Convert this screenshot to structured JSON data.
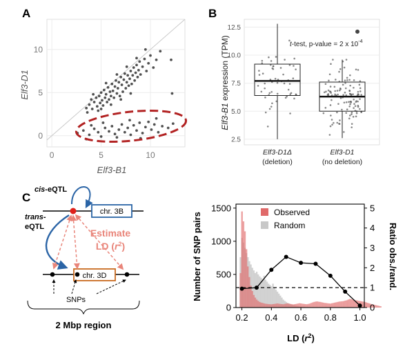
{
  "panel_labels": {
    "a": "A",
    "b": "B",
    "c": "C"
  },
  "colors": {
    "dark_red": "#b22222",
    "observed": "#e06a6a",
    "random": "#c8c8c8",
    "blue": "#2a64a6",
    "orange": "#c96a1e",
    "salmon": "#e9857a"
  },
  "chart_data": [
    {
      "type": "scatter",
      "panel": "A",
      "xlabel": "Elf3-B1",
      "ylabel": "Elf3-D1",
      "xlim": [
        -0.5,
        13.5
      ],
      "ylim": [
        -1.3,
        13.5
      ],
      "xticks": [
        "0",
        "5",
        "10"
      ],
      "yticks": [
        "0",
        "5",
        "10"
      ],
      "xtick_values": [
        0,
        5,
        10
      ],
      "ytick_values": [
        0,
        5,
        10
      ],
      "diagonal": "y = x",
      "highlight": "Elf3-D1 ≈ 0 cluster (dashed ellipse)",
      "points_upper": [
        [
          3.5,
          3.2
        ],
        [
          3.8,
          3.6
        ],
        [
          4.0,
          4.2
        ],
        [
          4.1,
          3.1
        ],
        [
          4.3,
          3.9
        ],
        [
          4.5,
          4.4
        ],
        [
          4.6,
          3.4
        ],
        [
          4.8,
          4.6
        ],
        [
          4.9,
          3.8
        ],
        [
          5.0,
          5.0
        ],
        [
          5.1,
          4.1
        ],
        [
          5.2,
          3.5
        ],
        [
          5.3,
          5.3
        ],
        [
          5.4,
          4.4
        ],
        [
          5.5,
          4.8
        ],
        [
          5.6,
          3.9
        ],
        [
          5.7,
          5.6
        ],
        [
          5.8,
          4.2
        ],
        [
          5.9,
          5.1
        ],
        [
          6.0,
          4.6
        ],
        [
          6.1,
          6.0
        ],
        [
          6.2,
          5.2
        ],
        [
          6.3,
          4.4
        ],
        [
          6.4,
          5.7
        ],
        [
          6.5,
          6.4
        ],
        [
          6.6,
          4.9
        ],
        [
          6.7,
          5.5
        ],
        [
          6.8,
          6.2
        ],
        [
          6.9,
          4.6
        ],
        [
          7.0,
          6.8
        ],
        [
          7.1,
          5.9
        ],
        [
          7.2,
          5.1
        ],
        [
          7.3,
          6.5
        ],
        [
          7.4,
          7.2
        ],
        [
          7.5,
          5.5
        ],
        [
          7.6,
          6.2
        ],
        [
          7.7,
          7.0
        ],
        [
          7.8,
          5.8
        ],
        [
          7.9,
          6.6
        ],
        [
          8.0,
          7.5
        ],
        [
          8.1,
          6.0
        ],
        [
          8.2,
          7.0
        ],
        [
          8.3,
          7.9
        ],
        [
          8.4,
          6.4
        ],
        [
          8.5,
          7.3
        ],
        [
          8.6,
          8.2
        ],
        [
          8.7,
          6.8
        ],
        [
          8.8,
          7.6
        ],
        [
          8.9,
          8.6
        ],
        [
          9.0,
          7.1
        ],
        [
          9.2,
          8.0
        ],
        [
          9.4,
          8.9
        ],
        [
          9.6,
          7.5
        ],
        [
          9.8,
          8.4
        ],
        [
          10.0,
          9.3
        ],
        [
          10.3,
          7.9
        ],
        [
          10.6,
          8.8
        ],
        [
          11.0,
          9.8
        ],
        [
          5.0,
          3.1
        ],
        [
          6.0,
          3.6
        ],
        [
          7.0,
          4.2
        ],
        [
          8.0,
          4.9
        ],
        [
          4.2,
          4.8
        ],
        [
          5.5,
          6.1
        ],
        [
          6.6,
          7.1
        ],
        [
          7.6,
          8.0
        ],
        [
          8.6,
          9.0
        ],
        [
          9.5,
          10.0
        ],
        [
          12.1,
          8.8
        ],
        [
          12.2,
          4.9
        ],
        [
          3.6,
          2.7
        ],
        [
          4.7,
          2.9
        ]
      ],
      "points_lower": [
        [
          2.6,
          0.3
        ],
        [
          3.2,
          0.6
        ],
        [
          3.8,
          0.1
        ],
        [
          4.3,
          0.8
        ],
        [
          4.7,
          0.4
        ],
        [
          5.0,
          -0.1
        ],
        [
          5.4,
          0.9
        ],
        [
          5.8,
          0.5
        ],
        [
          6.1,
          1.1
        ],
        [
          6.4,
          0.2
        ],
        [
          6.8,
          0.7
        ],
        [
          7.1,
          1.3
        ],
        [
          7.4,
          0.4
        ],
        [
          7.7,
          0.9
        ],
        [
          8.0,
          0.1
        ],
        [
          8.3,
          1.2
        ],
        [
          8.6,
          0.6
        ],
        [
          8.9,
          1.5
        ],
        [
          9.2,
          0.3
        ],
        [
          9.5,
          1.0
        ],
        [
          9.8,
          1.6
        ],
        [
          10.1,
          0.7
        ],
        [
          10.4,
          1.3
        ],
        [
          10.8,
          0.4
        ],
        [
          11.2,
          1.1
        ],
        [
          4.0,
          1.2
        ],
        [
          5.2,
          1.5
        ],
        [
          6.6,
          -0.2
        ],
        [
          7.9,
          1.8
        ],
        [
          9.0,
          -0.3
        ],
        [
          3.5,
          -0.4
        ],
        [
          10.6,
          2.0
        ],
        [
          11.8,
          0.9
        ],
        [
          12.3,
          1.4
        ]
      ]
    },
    {
      "type": "box",
      "panel": "B",
      "ylabel_prefix": "Elf3-B1",
      "ylabel_suffix": " expression (TPM)",
      "ylim": [
        2.0,
        13.2
      ],
      "yticks": [
        "12.5",
        "10.0",
        "7.5",
        "5.0",
        "2.5"
      ],
      "ytick_values": [
        12.5,
        10.0,
        7.5,
        5.0,
        2.5
      ],
      "annotation_italic": "t",
      "annotation_text": "-test, p-value = 2 x 10",
      "annotation_exp": "-4",
      "groups": [
        {
          "label": "Elf3-D1Δ",
          "sublabel": "(deletion)",
          "whisker_low": 2.5,
          "q1": 6.4,
          "median": 7.7,
          "q3": 9.2,
          "whisker_high": 12.8,
          "outliers": []
        },
        {
          "label": "Elf3-D1",
          "sublabel": "(no deletion)",
          "whisker_low": 2.6,
          "q1": 5.0,
          "median": 6.3,
          "q3": 7.6,
          "whisker_high": 9.6,
          "outliers": [
            12.1
          ]
        }
      ]
    },
    {
      "type": "histogram+line",
      "panel": "C",
      "xlabel_main": "LD (",
      "xlabel_var": "r",
      "xlabel_exp": "2",
      "xlabel_close": ")",
      "ylabel_left": "Number of SNP pairs",
      "ylabel_right": "Ratio obs./rand.",
      "xlim": [
        0.16,
        1.03
      ],
      "ylim_left": [
        0,
        1560
      ],
      "ylim_right": [
        0,
        5.2
      ],
      "xticks": [
        "0.2",
        "0.4",
        "0.6",
        "0.8",
        "1.0"
      ],
      "xtick_values": [
        0.2,
        0.4,
        0.6,
        0.8,
        1.0
      ],
      "yticks_left": [
        "0",
        "500",
        "1000",
        "1500"
      ],
      "ytick_values_left": [
        0,
        500,
        1000,
        1500
      ],
      "yticks_right": [
        "0",
        "1",
        "2",
        "3",
        "4",
        "5"
      ],
      "ytick_values_right": [
        0,
        1,
        2,
        3,
        4,
        5
      ],
      "legend": [
        {
          "name": "Observed"
        },
        {
          "name": "Random"
        }
      ],
      "bin_width": 0.01,
      "bin_start": 0.19,
      "series": [
        {
          "name": "Observed",
          "values": [
            520,
            1450,
            1300,
            1150,
            880,
            620,
            460,
            330,
            250,
            190,
            150,
            120,
            100,
            85,
            75,
            70,
            62,
            58,
            55,
            52,
            50,
            48,
            52,
            55,
            58,
            62,
            58,
            55,
            52,
            50,
            55,
            60,
            62,
            58,
            54,
            50,
            48,
            52,
            56,
            60,
            65,
            62,
            58,
            55,
            52,
            50,
            55,
            60,
            70,
            78,
            85,
            90,
            92,
            88,
            85,
            80,
            75,
            70,
            68,
            65,
            62,
            60,
            65,
            70,
            75,
            80,
            85,
            90,
            92,
            95,
            98,
            105,
            110,
            120,
            130,
            128,
            120,
            112,
            110,
            108,
            102,
            98,
            95,
            90,
            85,
            80,
            72,
            65,
            58,
            50,
            45,
            40,
            35,
            30,
            25,
            20
          ]
        },
        {
          "name": "Random",
          "values": [
            760,
            1050,
            980,
            900,
            820,
            760,
            700,
            650,
            600,
            560,
            520,
            540,
            500,
            470,
            450,
            430,
            480,
            420,
            390,
            360,
            340,
            320,
            360,
            300,
            270,
            240,
            210,
            180,
            150,
            120,
            100,
            85,
            70,
            60,
            50,
            42,
            36,
            30,
            26,
            22,
            18,
            15,
            13,
            11,
            9,
            8,
            7,
            6,
            5,
            5,
            4,
            4,
            3,
            3,
            3,
            2,
            2,
            2,
            2,
            2,
            2,
            2,
            2,
            2,
            2,
            2,
            2,
            2,
            2,
            2,
            2,
            2,
            2,
            2,
            2,
            2,
            2,
            2,
            2,
            2,
            2,
            2,
            2,
            2,
            2,
            2,
            2,
            2,
            2,
            2,
            2,
            2,
            2,
            2,
            2
          ]
        }
      ],
      "ratio_x": [
        0.2,
        0.3,
        0.4,
        0.5,
        0.6,
        0.7,
        0.8,
        0.9,
        1.0
      ],
      "ratio_y": [
        0.95,
        1.0,
        1.9,
        2.55,
        2.25,
        2.2,
        1.6,
        0.8,
        0.1
      ],
      "reference_line": 1.0
    }
  ],
  "diagram": {
    "cis_eqtl": "cis",
    "cis_eqtl_rest": "-eQTL",
    "trans_label_1": "trans-",
    "trans_label_2": "eQTL",
    "chr3b": "chr. 3B",
    "chr3d": "chr. 3D",
    "estimate_line1": "Estimate",
    "estimate_line2_pre": "LD (",
    "estimate_line2_var": "r",
    "estimate_line2_exp": "2",
    "estimate_line2_close": ")",
    "snps": "SNPs",
    "region": "2 Mbp region"
  }
}
